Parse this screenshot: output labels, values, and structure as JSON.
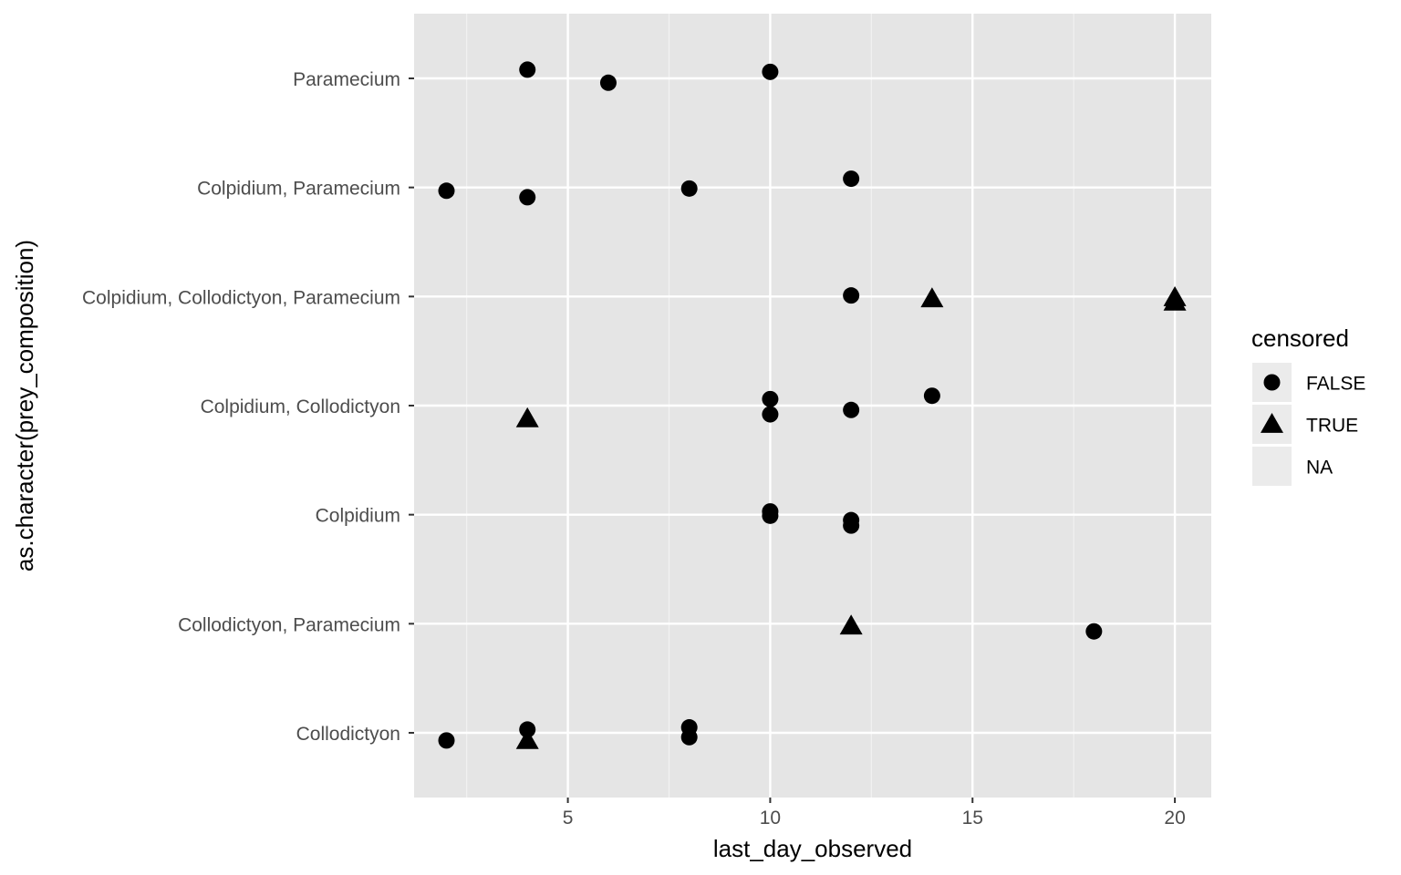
{
  "chart_data": {
    "type": "scatter",
    "xlabel": "last_day_observed",
    "ylabel": "as.character(prey_composition)",
    "xlim": [
      1.2,
      20.9
    ],
    "x_ticks": [
      5,
      10,
      15,
      20
    ],
    "categories": [
      "Collodictyon",
      "Collodictyon, Paramecium",
      "Colpidium",
      "Colpidium, Collodictyon",
      "Colpidium, Collodictyon, Paramecium",
      "Colpidium, Paramecium",
      "Paramecium"
    ],
    "grid": true,
    "legend": {
      "title": "censored",
      "position": "right",
      "entries": [
        {
          "label": "FALSE",
          "shape": "circle"
        },
        {
          "label": "TRUE",
          "shape": "triangle"
        },
        {
          "label": "NA",
          "shape": "none"
        }
      ]
    },
    "points": [
      {
        "category": "Paramecium",
        "x": 6,
        "censored": "FALSE",
        "jitter": 0.04
      },
      {
        "category": "Paramecium",
        "x": 4,
        "censored": "FALSE",
        "jitter": -0.08
      },
      {
        "category": "Paramecium",
        "x": 10,
        "censored": "FALSE",
        "jitter": -0.06
      },
      {
        "category": "Colpidium, Paramecium",
        "x": 2,
        "censored": "FALSE",
        "jitter": 0.03
      },
      {
        "category": "Colpidium, Paramecium",
        "x": 4,
        "censored": "FALSE",
        "jitter": 0.09
      },
      {
        "category": "Colpidium, Paramecium",
        "x": 8,
        "censored": "FALSE",
        "jitter": 0.01
      },
      {
        "category": "Colpidium, Paramecium",
        "x": 12,
        "censored": "FALSE",
        "jitter": -0.08
      },
      {
        "category": "Colpidium, Collodictyon, Paramecium",
        "x": 12,
        "censored": "FALSE",
        "jitter": -0.01
      },
      {
        "category": "Colpidium, Collodictyon, Paramecium",
        "x": 14,
        "censored": "TRUE",
        "jitter": 0.02
      },
      {
        "category": "Colpidium, Collodictyon, Paramecium",
        "x": 20,
        "censored": "TRUE",
        "jitter": 0.05
      },
      {
        "category": "Colpidium, Collodictyon, Paramecium",
        "x": 20,
        "censored": "TRUE",
        "jitter": 0.01
      },
      {
        "category": "Colpidium, Collodictyon",
        "x": 4,
        "censored": "TRUE",
        "jitter": 0.12
      },
      {
        "category": "Colpidium, Collodictyon",
        "x": 10,
        "censored": "FALSE",
        "jitter": 0.08
      },
      {
        "category": "Colpidium, Collodictyon",
        "x": 10,
        "censored": "FALSE",
        "jitter": -0.06
      },
      {
        "category": "Colpidium, Collodictyon",
        "x": 12,
        "censored": "FALSE",
        "jitter": 0.04
      },
      {
        "category": "Colpidium, Collodictyon",
        "x": 14,
        "censored": "FALSE",
        "jitter": -0.09
      },
      {
        "category": "Colpidium",
        "x": 10,
        "censored": "FALSE",
        "jitter": 0.01
      },
      {
        "category": "Colpidium",
        "x": 10,
        "censored": "FALSE",
        "jitter": -0.03
      },
      {
        "category": "Colpidium",
        "x": 12,
        "censored": "FALSE",
        "jitter": 0.1
      },
      {
        "category": "Colpidium",
        "x": 12,
        "censored": "FALSE",
        "jitter": 0.05
      },
      {
        "category": "Collodictyon, Paramecium",
        "x": 12,
        "censored": "TRUE",
        "jitter": 0.02
      },
      {
        "category": "Collodictyon, Paramecium",
        "x": 18,
        "censored": "FALSE",
        "jitter": 0.07
      },
      {
        "category": "Collodictyon",
        "x": 2,
        "censored": "FALSE",
        "jitter": 0.07
      },
      {
        "category": "Collodictyon",
        "x": 4,
        "censored": "TRUE",
        "jitter": 0.07
      },
      {
        "category": "Collodictyon",
        "x": 4,
        "censored": "FALSE",
        "jitter": -0.03
      },
      {
        "category": "Collodictyon",
        "x": 8,
        "censored": "FALSE",
        "jitter": 0.04
      },
      {
        "category": "Collodictyon",
        "x": 8,
        "censored": "FALSE",
        "jitter": -0.05
      }
    ]
  }
}
